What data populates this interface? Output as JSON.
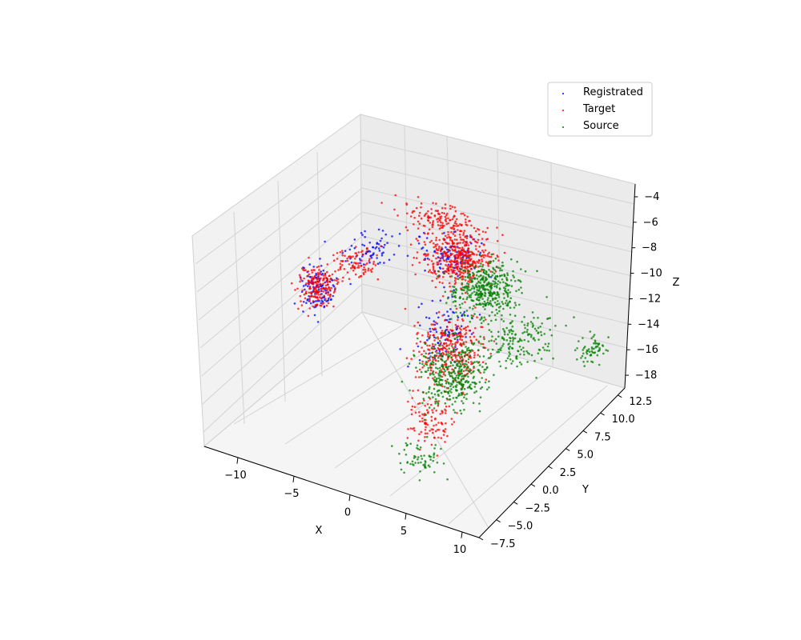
{
  "chart_data": {
    "type": "scatter",
    "projection": "3d",
    "title": "",
    "xlabel": "X",
    "ylabel": "Y",
    "zlabel": "Z",
    "xlim": [
      -13,
      11.5
    ],
    "ylim": [
      -7.5,
      13.5
    ],
    "zlim": [
      -19,
      -3
    ],
    "xticks": [
      -10,
      -5,
      0,
      5,
      10
    ],
    "yticks": [
      -7.5,
      -5.0,
      -2.5,
      0.0,
      2.5,
      5.0,
      7.5,
      10.0,
      12.5
    ],
    "zticks": [
      -18,
      -16,
      -14,
      -12,
      -10,
      -8,
      -6,
      -4
    ],
    "xtick_labels": [
      "−10",
      "−5",
      "0",
      "5",
      "10"
    ],
    "ytick_labels": [
      "−7.5",
      "−5.0",
      "−2.5",
      "0.0",
      "2.5",
      "5.0",
      "7.5",
      "10.0",
      "12.5"
    ],
    "ztick_labels": [
      "−18",
      "−16",
      "−14",
      "−12",
      "−10",
      "−8",
      "−6",
      "−4"
    ],
    "grid": true,
    "legend_position": "top-right",
    "legend": [
      "Registrated",
      "Target",
      "Source"
    ],
    "series": [
      {
        "name": "Registrated",
        "color": "#0000ff",
        "clusters": [
          {
            "center": [
              -11,
              5,
              -13
            ],
            "spread": [
              1.5,
              1.2,
              1.6
            ],
            "count": 120
          },
          {
            "center": [
              -8,
              8,
              -11
            ],
            "spread": [
              2.0,
              2.0,
              1.0
            ],
            "count": 70
          },
          {
            "center": [
              -2,
              9,
              -10
            ],
            "spread": [
              2.5,
              2.0,
              1.2
            ],
            "count": 100
          },
          {
            "center": [
              1,
              4,
              -12
            ],
            "spread": [
              2.0,
              2.2,
              1.8
            ],
            "count": 90
          }
        ]
      },
      {
        "name": "Target",
        "color": "#ff0000",
        "clusters": [
          {
            "center": [
              -11,
              5,
              -13
            ],
            "spread": [
              1.5,
              1.2,
              1.6
            ],
            "count": 180
          },
          {
            "center": [
              -9,
              7,
              -11.5
            ],
            "spread": [
              1.8,
              1.8,
              0.8
            ],
            "count": 90
          },
          {
            "center": [
              -4,
              11,
              -9
            ],
            "spread": [
              2.8,
              1.5,
              0.8
            ],
            "count": 140
          },
          {
            "center": [
              -1,
              9,
              -10
            ],
            "spread": [
              2.5,
              2.5,
              1.5
            ],
            "count": 420
          },
          {
            "center": [
              2,
              3,
              -13
            ],
            "spread": [
              2.5,
              2.5,
              2.2
            ],
            "count": 320
          },
          {
            "center": [
              3,
              -1,
              -16
            ],
            "spread": [
              2.0,
              1.8,
              1.5
            ],
            "count": 100
          }
        ]
      },
      {
        "name": "Source",
        "color": "#008000",
        "clusters": [
          {
            "center": [
              2,
              8,
              -11
            ],
            "spread": [
              2.5,
              2.5,
              1.5
            ],
            "count": 420
          },
          {
            "center": [
              3,
              2,
              -14
            ],
            "spread": [
              2.5,
              2.5,
              2.2
            ],
            "count": 380
          },
          {
            "center": [
              6,
              7,
              -13
            ],
            "spread": [
              2.5,
              3.0,
              1.5
            ],
            "count": 160
          },
          {
            "center": [
              10,
              11,
              -15
            ],
            "spread": [
              1.2,
              1.5,
              0.6
            ],
            "count": 60
          },
          {
            "center": [
              4,
              -4,
              -17
            ],
            "spread": [
              2.0,
              1.5,
              1.0
            ],
            "count": 60
          }
        ]
      }
    ]
  }
}
